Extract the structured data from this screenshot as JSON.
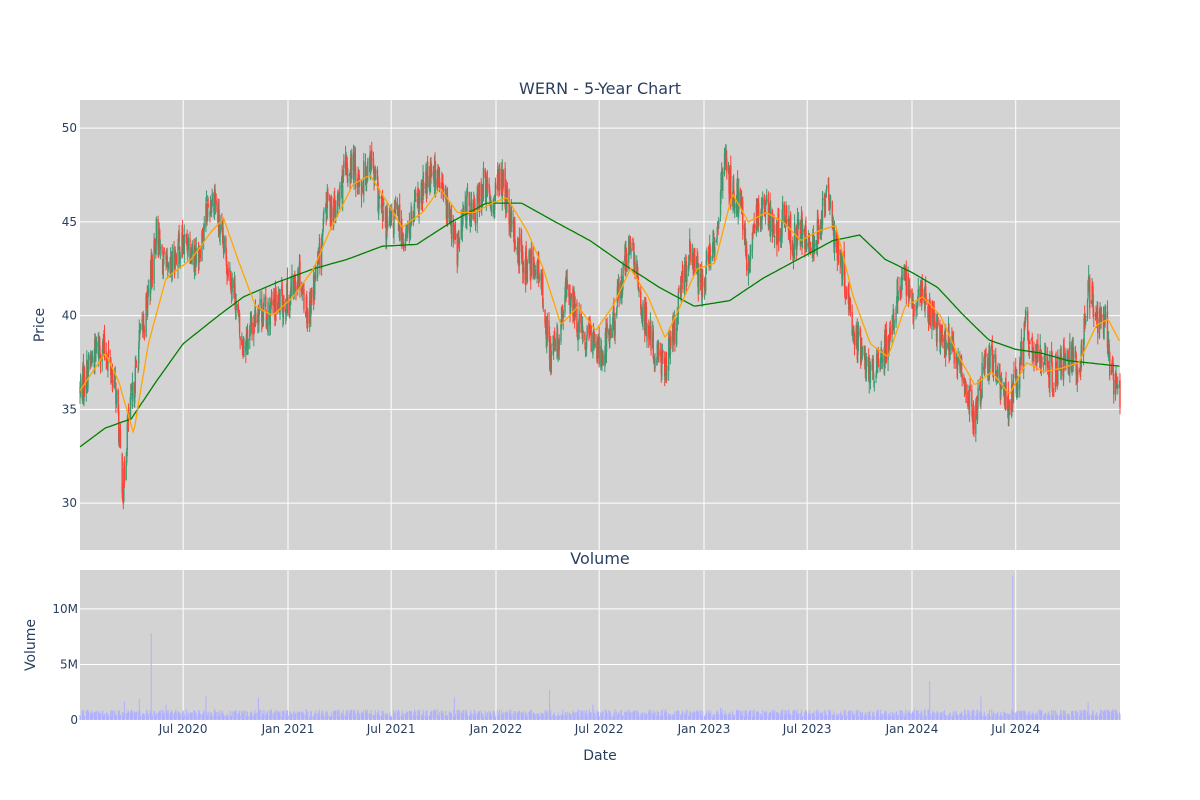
{
  "chart_data": [
    {
      "type": "candlestick",
      "title": "WERN - 5-Year Chart",
      "ylabel": "Price",
      "ylim": [
        27.5,
        51.5
      ],
      "xlim": [
        "2020-01-02",
        "2024-12-31"
      ],
      "yticks": [
        30,
        35,
        40,
        45,
        50
      ],
      "grid": true,
      "colors": {
        "up": "#3d9970",
        "down": "#ff4136",
        "ma_short": "#ffa500",
        "ma_long": "#008000",
        "plot_bg": "#d3d3d3"
      },
      "series": [
        {
          "type": "ohlc",
          "description": "daily candlesticks"
        },
        {
          "type": "line"
        },
        {
          "type": "line"
        }
      ],
      "close_anchors": [
        [
          "2020-01-02",
          36.0
        ],
        [
          "2020-01-20",
          37.5
        ],
        [
          "2020-02-05",
          38.5
        ],
        [
          "2020-02-20",
          37.8
        ],
        [
          "2020-03-05",
          36.0
        ],
        [
          "2020-03-12",
          33.0
        ],
        [
          "2020-03-18",
          30.5
        ],
        [
          "2020-03-25",
          34.0
        ],
        [
          "2020-04-05",
          36.0
        ],
        [
          "2020-04-15",
          38.5
        ],
        [
          "2020-04-25",
          40.0
        ],
        [
          "2020-05-05",
          42.0
        ],
        [
          "2020-05-15",
          44.5
        ],
        [
          "2020-05-25",
          43.0
        ],
        [
          "2020-06-05",
          42.0
        ],
        [
          "2020-06-20",
          43.5
        ],
        [
          "2020-07-10",
          44.0
        ],
        [
          "2020-07-25",
          43.0
        ],
        [
          "2020-08-10",
          45.5
        ],
        [
          "2020-08-25",
          46.5
        ],
        [
          "2020-09-05",
          44.0
        ],
        [
          "2020-09-20",
          42.5
        ],
        [
          "2020-10-01",
          41.0
        ],
        [
          "2020-10-10",
          38.5
        ],
        [
          "2020-10-25",
          39.0
        ],
        [
          "2020-11-10",
          40.5
        ],
        [
          "2020-11-25",
          40.0
        ],
        [
          "2020-12-10",
          40.5
        ],
        [
          "2021-01-05",
          41.0
        ],
        [
          "2021-01-20",
          42.5
        ],
        [
          "2021-02-05",
          40.0
        ],
        [
          "2021-02-25",
          43.0
        ],
        [
          "2021-03-10",
          46.0
        ],
        [
          "2021-03-25",
          45.5
        ],
        [
          "2021-04-10",
          47.5
        ],
        [
          "2021-04-25",
          48.0
        ],
        [
          "2021-05-10",
          47.0
        ],
        [
          "2021-05-25",
          48.5
        ],
        [
          "2021-06-10",
          46.0
        ],
        [
          "2021-06-25",
          44.5
        ],
        [
          "2021-07-10",
          45.5
        ],
        [
          "2021-07-25",
          44.0
        ],
        [
          "2021-08-10",
          45.5
        ],
        [
          "2021-08-25",
          46.5
        ],
        [
          "2021-09-10",
          48.0
        ],
        [
          "2021-09-25",
          47.0
        ],
        [
          "2021-10-10",
          45.5
        ],
        [
          "2021-10-25",
          43.5
        ],
        [
          "2021-11-10",
          46.0
        ],
        [
          "2021-11-25",
          45.5
        ],
        [
          "2021-12-10",
          47.0
        ],
        [
          "2021-12-25",
          46.0
        ],
        [
          "2022-01-10",
          47.5
        ],
        [
          "2022-01-25",
          45.0
        ],
        [
          "2022-02-10",
          43.5
        ],
        [
          "2022-02-25",
          42.5
        ],
        [
          "2022-03-10",
          43.0
        ],
        [
          "2022-03-25",
          41.0
        ],
        [
          "2022-04-05",
          38.0
        ],
        [
          "2022-04-20",
          38.5
        ],
        [
          "2022-05-05",
          41.5
        ],
        [
          "2022-05-20",
          40.0
        ],
        [
          "2022-06-05",
          38.5
        ],
        [
          "2022-06-20",
          39.0
        ],
        [
          "2022-07-05",
          38.0
        ],
        [
          "2022-07-25",
          39.5
        ],
        [
          "2022-08-10",
          42.0
        ],
        [
          "2022-08-25",
          44.0
        ],
        [
          "2022-09-10",
          41.0
        ],
        [
          "2022-09-25",
          39.0
        ],
        [
          "2022-10-10",
          38.0
        ],
        [
          "2022-10-25",
          37.5
        ],
        [
          "2022-11-10",
          39.0
        ],
        [
          "2022-11-25",
          42.0
        ],
        [
          "2022-12-10",
          43.5
        ],
        [
          "2022-12-25",
          41.5
        ],
        [
          "2023-01-10",
          43.0
        ],
        [
          "2023-01-25",
          45.0
        ],
        [
          "2023-02-05",
          48.5
        ],
        [
          "2023-02-20",
          46.5
        ],
        [
          "2023-03-05",
          46.0
        ],
        [
          "2023-03-20",
          42.5
        ],
        [
          "2023-04-05",
          45.5
        ],
        [
          "2023-04-20",
          46.0
        ],
        [
          "2023-05-05",
          44.0
        ],
        [
          "2023-05-20",
          45.5
        ],
        [
          "2023-06-05",
          44.0
        ],
        [
          "2023-06-20",
          44.5
        ],
        [
          "2023-07-05",
          43.5
        ],
        [
          "2023-07-20",
          44.5
        ],
        [
          "2023-08-05",
          46.5
        ],
        [
          "2023-08-20",
          44.0
        ],
        [
          "2023-09-05",
          42.0
        ],
        [
          "2023-09-20",
          39.0
        ],
        [
          "2023-10-05",
          38.0
        ],
        [
          "2023-10-20",
          37.0
        ],
        [
          "2023-11-05",
          37.5
        ],
        [
          "2023-11-20",
          38.5
        ],
        [
          "2023-12-05",
          41.0
        ],
        [
          "2023-12-20",
          42.0
        ],
        [
          "2024-01-05",
          40.0
        ],
        [
          "2024-01-20",
          41.5
        ],
        [
          "2024-02-05",
          40.0
        ],
        [
          "2024-02-20",
          39.0
        ],
        [
          "2024-03-05",
          38.5
        ],
        [
          "2024-03-20",
          37.5
        ],
        [
          "2024-04-05",
          36.0
        ],
        [
          "2024-04-20",
          34.5
        ],
        [
          "2024-05-05",
          37.0
        ],
        [
          "2024-05-20",
          37.5
        ],
        [
          "2024-06-05",
          36.0
        ],
        [
          "2024-06-20",
          35.5
        ],
        [
          "2024-07-05",
          37.0
        ],
        [
          "2024-07-20",
          39.5
        ],
        [
          "2024-08-05",
          37.5
        ],
        [
          "2024-08-20",
          38.0
        ],
        [
          "2024-09-05",
          36.5
        ],
        [
          "2024-09-20",
          37.5
        ],
        [
          "2024-10-05",
          38.0
        ],
        [
          "2024-10-20",
          37.0
        ],
        [
          "2024-11-05",
          41.5
        ],
        [
          "2024-11-20",
          40.0
        ],
        [
          "2024-12-05",
          39.5
        ],
        [
          "2024-12-20",
          36.0
        ],
        [
          "2024-12-31",
          36.0
        ]
      ],
      "ma_short_anchors": [
        [
          "2020-01-02",
          36.0
        ],
        [
          "2020-02-15",
          38.0
        ],
        [
          "2020-03-10",
          36.5
        ],
        [
          "2020-04-05",
          33.7
        ],
        [
          "2020-05-01",
          38.5
        ],
        [
          "2020-06-01",
          42.0
        ],
        [
          "2020-07-15",
          43.0
        ],
        [
          "2020-08-20",
          44.5
        ],
        [
          "2020-09-10",
          45.2
        ],
        [
          "2020-10-05",
          43.0
        ],
        [
          "2020-11-05",
          40.5
        ],
        [
          "2020-12-05",
          40.0
        ],
        [
          "2021-01-10",
          41.0
        ],
        [
          "2021-02-15",
          42.5
        ],
        [
          "2021-03-15",
          44.5
        ],
        [
          "2021-04-25",
          47.0
        ],
        [
          "2021-05-25",
          47.5
        ],
        [
          "2021-06-25",
          46.0
        ],
        [
          "2021-07-20",
          44.7
        ],
        [
          "2021-08-25",
          45.5
        ],
        [
          "2021-09-25",
          46.8
        ],
        [
          "2021-10-25",
          45.5
        ],
        [
          "2021-11-25",
          45.5
        ],
        [
          "2021-12-25",
          46.0
        ],
        [
          "2022-01-20",
          46.3
        ],
        [
          "2022-02-25",
          44.5
        ],
        [
          "2022-03-25",
          42.5
        ],
        [
          "2022-04-25",
          39.5
        ],
        [
          "2022-05-25",
          40.5
        ],
        [
          "2022-06-25",
          39.2
        ],
        [
          "2022-07-25",
          40.5
        ],
        [
          "2022-08-25",
          42.5
        ],
        [
          "2022-09-25",
          41.0
        ],
        [
          "2022-10-25",
          38.8
        ],
        [
          "2022-11-20",
          40.5
        ],
        [
          "2022-12-20",
          42.5
        ],
        [
          "2023-01-20",
          42.8
        ],
        [
          "2023-02-20",
          46.5
        ],
        [
          "2023-03-20",
          45.0
        ],
        [
          "2023-04-20",
          45.5
        ],
        [
          "2023-05-20",
          45.0
        ],
        [
          "2023-06-20",
          44.0
        ],
        [
          "2023-07-20",
          44.5
        ],
        [
          "2023-08-20",
          44.8
        ],
        [
          "2023-09-20",
          41.0
        ],
        [
          "2023-10-20",
          38.5
        ],
        [
          "2023-11-20",
          37.8
        ],
        [
          "2023-12-20",
          40.5
        ],
        [
          "2024-01-20",
          41.0
        ],
        [
          "2024-02-20",
          40.0
        ],
        [
          "2024-03-20",
          38.0
        ],
        [
          "2024-04-20",
          36.3
        ],
        [
          "2024-05-20",
          37.0
        ],
        [
          "2024-06-20",
          35.8
        ],
        [
          "2024-07-20",
          37.5
        ],
        [
          "2024-08-20",
          37.0
        ],
        [
          "2024-09-20",
          37.2
        ],
        [
          "2024-10-20",
          37.5
        ],
        [
          "2024-11-20",
          39.5
        ],
        [
          "2024-12-10",
          39.8
        ],
        [
          "2024-12-31",
          38.6
        ]
      ],
      "ma_long_anchors": [
        [
          "2020-01-02",
          33.0
        ],
        [
          "2020-02-15",
          34.0
        ],
        [
          "2020-04-01",
          34.5
        ],
        [
          "2020-05-15",
          36.5
        ],
        [
          "2020-07-01",
          38.5
        ],
        [
          "2020-09-01",
          40.0
        ],
        [
          "2020-10-15",
          41.0
        ],
        [
          "2020-12-15",
          41.8
        ],
        [
          "2021-02-15",
          42.5
        ],
        [
          "2021-04-15",
          43.0
        ],
        [
          "2021-06-15",
          43.7
        ],
        [
          "2021-08-15",
          43.8
        ],
        [
          "2021-10-15",
          45.0
        ],
        [
          "2021-12-15",
          46.0
        ],
        [
          "2022-02-15",
          46.0
        ],
        [
          "2022-04-15",
          45.0
        ],
        [
          "2022-06-15",
          44.0
        ],
        [
          "2022-08-15",
          42.7
        ],
        [
          "2022-10-15",
          41.5
        ],
        [
          "2022-12-15",
          40.5
        ],
        [
          "2023-02-15",
          40.8
        ],
        [
          "2023-04-15",
          42.0
        ],
        [
          "2023-06-15",
          43.0
        ],
        [
          "2023-08-15",
          44.0
        ],
        [
          "2023-10-01",
          44.3
        ],
        [
          "2023-11-15",
          43.0
        ],
        [
          "2024-01-01",
          42.3
        ],
        [
          "2024-02-15",
          41.5
        ],
        [
          "2024-04-01",
          40.0
        ],
        [
          "2024-05-15",
          38.7
        ],
        [
          "2024-07-01",
          38.2
        ],
        [
          "2024-08-15",
          38.0
        ],
        [
          "2024-10-01",
          37.6
        ],
        [
          "2024-12-31",
          37.3
        ]
      ]
    },
    {
      "type": "bar",
      "title": "Volume",
      "xlabel": "Date",
      "ylabel": "Volume",
      "ylim": [
        0,
        13500000
      ],
      "yticks": [
        0,
        5000000,
        10000000
      ],
      "ytick_labels": [
        "0",
        "5M",
        "10M"
      ],
      "xticks": [
        "2020-07-01",
        "2021-01-01",
        "2021-07-01",
        "2022-01-01",
        "2022-07-01",
        "2023-01-01",
        "2023-07-01",
        "2024-01-01",
        "2024-07-01"
      ],
      "xtick_labels": [
        "Jul 2020",
        "Jan 2021",
        "Jul 2021",
        "Jan 2022",
        "Jul 2022",
        "Jan 2023",
        "Jul 2023",
        "Jan 2024",
        "Jul 2024"
      ],
      "bar_color": "#b0b0ff",
      "typical_volume": 600000,
      "spikes": [
        [
          "2020-03-20",
          1700000
        ],
        [
          "2020-04-15",
          1900000
        ],
        [
          "2020-05-06",
          7800000
        ],
        [
          "2020-06-01",
          1400000
        ],
        [
          "2020-08-10",
          2200000
        ],
        [
          "2020-09-20",
          1300000
        ],
        [
          "2020-11-10",
          2000000
        ],
        [
          "2021-02-20",
          1200000
        ],
        [
          "2021-05-01",
          1600000
        ],
        [
          "2021-07-25",
          1800000
        ],
        [
          "2021-10-20",
          2000000
        ],
        [
          "2022-04-05",
          2700000
        ],
        [
          "2022-06-20",
          1400000
        ],
        [
          "2023-01-30",
          1100000
        ],
        [
          "2023-07-30",
          1000000
        ],
        [
          "2023-11-25",
          1700000
        ],
        [
          "2024-02-01",
          3500000
        ],
        [
          "2024-05-01",
          2100000
        ],
        [
          "2024-06-26",
          13000000
        ],
        [
          "2024-11-05",
          1600000
        ]
      ]
    }
  ]
}
